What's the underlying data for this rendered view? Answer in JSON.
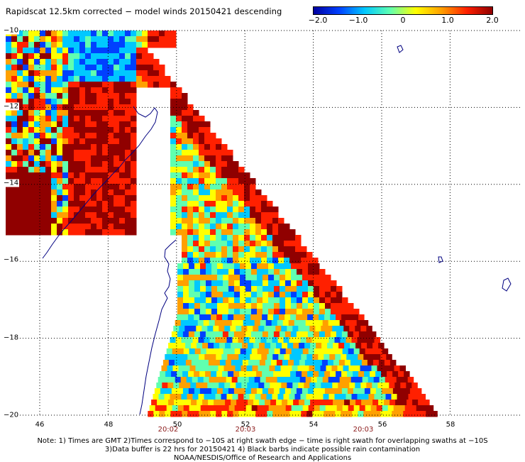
{
  "title": "Rapidscat 12.5km corrected − model winds 20150421 descending",
  "colorbar": {
    "ticks": [
      "−2.0",
      "−1.0",
      "0",
      "1.0",
      "2.0"
    ],
    "tick_values": [
      -2.0,
      -1.0,
      0,
      1.0,
      2.0
    ],
    "range": [
      -2.0,
      2.0
    ],
    "colors": [
      "#0000a0",
      "#0040ff",
      "#00c8ff",
      "#60ffb0",
      "#ffff00",
      "#ffa000",
      "#ff2000",
      "#900000"
    ]
  },
  "axes": {
    "lat_labels": [
      "−10",
      "−12",
      "−14",
      "−16",
      "−18",
      "−20"
    ],
    "lat_values": [
      -10,
      -12,
      -14,
      -16,
      -18,
      -20
    ],
    "lon_labels": [
      "46",
      "48",
      "50",
      "52",
      "54",
      "56",
      "58"
    ],
    "lon_values": [
      46,
      48,
      50,
      52,
      54,
      56,
      58
    ],
    "grid": "dotted"
  },
  "swath_times": [
    {
      "label": "20:02",
      "lon": 50.0
    },
    {
      "label": "20:03",
      "lon": 52.0
    },
    {
      "label": "20:03",
      "lon": 56.0
    }
  ],
  "notes": [
    "Note: 1) Times are GMT 2)Times correspond to −10S at right swath edge − time is right swath for overlapping swaths at −10S",
    "3)Data buffer is 22 hrs for 20150421 4) Black barbs indicate possible rain contamination",
    "NOAA/NESDIS/Office of Research and Applications"
  ],
  "colors": {
    "coastline": "#000080",
    "grid": "#000000",
    "time_label": "#8b1a1a"
  }
}
